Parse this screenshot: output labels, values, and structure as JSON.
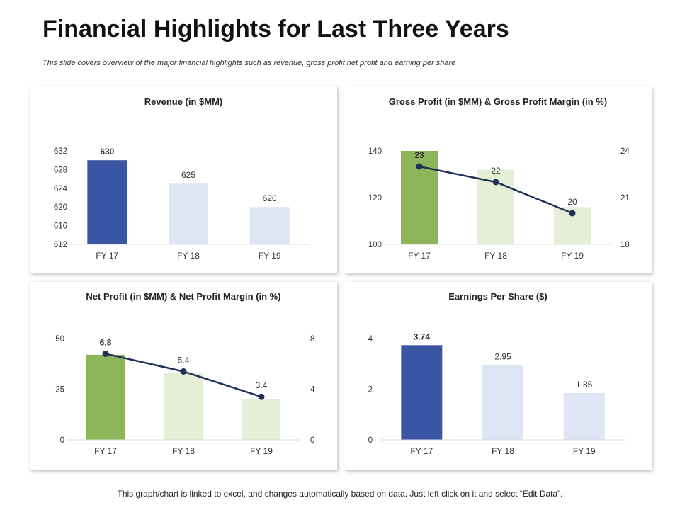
{
  "page": {
    "title": "Financial Highlights for Last Three Years",
    "subtitle": "This slide covers overview of the major financial highlights such as revenue, gross profit net profit and earning per share",
    "footer": "This graph/chart is linked to excel, and changes automatically based on data. Just left click on it and select “Edit Data”."
  },
  "colors": {
    "dark_blue": "#3A55A3",
    "light_blue": "#DEE5F5",
    "green": "#8DB55A",
    "light_green": "#E5EFD8",
    "line": "#1F3157",
    "axis": "#D9D9D9"
  },
  "chart_data": [
    {
      "id": "revenue",
      "type": "bar",
      "title": "Revenue (in $MM)",
      "categories": [
        "FY 17",
        "FY 18",
        "FY 19"
      ],
      "values": [
        630,
        625,
        620
      ],
      "value_labels": [
        "630",
        "625",
        "620"
      ],
      "ylim": [
        612,
        632
      ],
      "yticks": [
        "612",
        "616",
        "620",
        "624",
        "628",
        "632"
      ],
      "bar_colors": [
        "dark_blue",
        "light_blue",
        "light_blue"
      ],
      "bold_first_label": true
    },
    {
      "id": "gross-profit",
      "type": "bar+line",
      "title": "Gross Profit (in $MM) & Gross Profit Margin (in %)",
      "categories": [
        "FY 17",
        "FY 18",
        "FY 19"
      ],
      "values": [
        140,
        132,
        116
      ],
      "ylim": [
        100,
        140
      ],
      "yticks": [
        "100",
        "120",
        "140"
      ],
      "line_values": [
        23,
        22,
        20
      ],
      "line_labels": [
        "23",
        "22",
        "20"
      ],
      "y2lim": [
        18,
        24
      ],
      "y2ticks": [
        "18",
        "21",
        "24"
      ],
      "bar_colors": [
        "green",
        "light_green",
        "light_green"
      ],
      "bold_first_label": true
    },
    {
      "id": "net-profit",
      "type": "bar+line",
      "title": "Net Profit (in $MM) & Net Profit Margin (in %)",
      "categories": [
        "FY 17",
        "FY 18",
        "FY 19"
      ],
      "values": [
        42,
        33,
        20
      ],
      "ylim": [
        0,
        50
      ],
      "yticks": [
        "0",
        "25",
        "50"
      ],
      "line_values": [
        6.8,
        5.4,
        3.4
      ],
      "line_labels": [
        "6.8",
        "5.4",
        "3.4"
      ],
      "y2lim": [
        0,
        8
      ],
      "y2ticks": [
        "0",
        "4",
        "8"
      ],
      "bar_colors": [
        "green",
        "light_green",
        "light_green"
      ],
      "bold_first_label": true
    },
    {
      "id": "eps",
      "type": "bar",
      "title": "Earnings Per Share ($)",
      "categories": [
        "FY 17",
        "FY 18",
        "FY 19"
      ],
      "values": [
        3.74,
        2.95,
        1.85
      ],
      "value_labels": [
        "3.74",
        "2.95",
        "1.85"
      ],
      "ylim": [
        0,
        4
      ],
      "yticks": [
        "0",
        "2",
        "4"
      ],
      "bar_colors": [
        "dark_blue",
        "light_blue",
        "light_blue"
      ],
      "bold_first_label": true
    }
  ]
}
